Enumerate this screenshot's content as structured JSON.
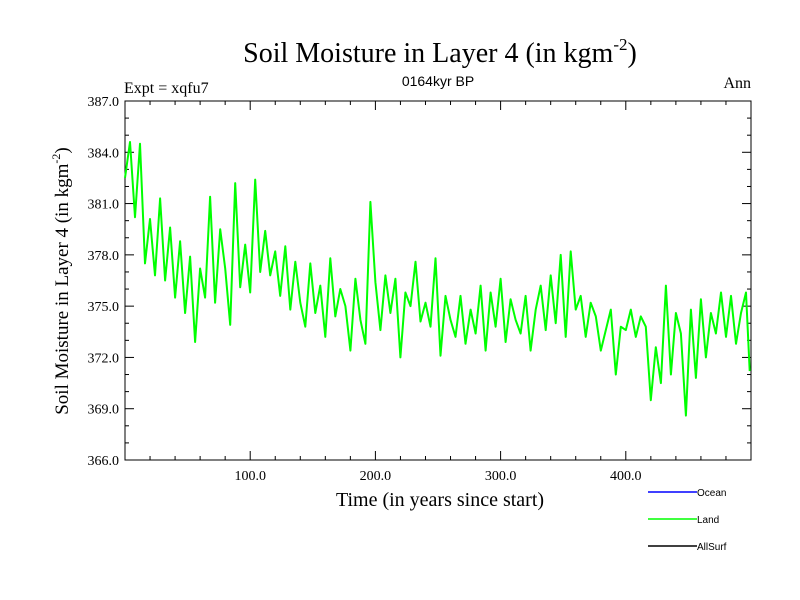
{
  "chart_data": {
    "type": "line",
    "title": "Soil Moisture in Layer 4 (in kgm",
    "title_superscript": "-2",
    "title_suffix": ")",
    "subtitle_left": "Expt = xqfu7",
    "subtitle_center": "0164kyr BP",
    "subtitle_right": "Ann",
    "xlabel": "Time (in years since start)",
    "ylabel": "Soil Moisture in Layer 4 (in kgm",
    "ylabel_superscript": "-2",
    "ylabel_suffix": ")",
    "xlim": [
      0,
      500
    ],
    "ylim": [
      366,
      387
    ],
    "x_ticks": [
      100,
      200,
      300,
      400
    ],
    "x_tick_labels": [
      "100.0",
      "200.0",
      "300.0",
      "400.0"
    ],
    "y_ticks": [
      366,
      369,
      372,
      375,
      378,
      381,
      384,
      387
    ],
    "y_tick_labels": [
      "366.0",
      "369.0",
      "372.0",
      "375.0",
      "378.0",
      "381.0",
      "384.0",
      "387.0"
    ],
    "legend_position": "bottom-right",
    "colors": {
      "Ocean": "#0000ff",
      "Land": "#00ff00",
      "AllSurf": "#000000"
    },
    "series": [
      {
        "name": "Ocean",
        "color": "#0000ff",
        "x": [],
        "values": []
      },
      {
        "name": "Land",
        "color": "#00ff00",
        "x": [
          0,
          4,
          8,
          12,
          16,
          20,
          24,
          28,
          32,
          36,
          40,
          44,
          48,
          52,
          56,
          60,
          64,
          68,
          72,
          76,
          80,
          84,
          88,
          92,
          96,
          100,
          104,
          108,
          112,
          116,
          120,
          124,
          128,
          132,
          136,
          140,
          144,
          148,
          152,
          156,
          160,
          164,
          168,
          172,
          176,
          180,
          184,
          188,
          192,
          196,
          200,
          204,
          208,
          212,
          216,
          220,
          224,
          228,
          232,
          236,
          240,
          244,
          248,
          252,
          256,
          260,
          264,
          268,
          272,
          276,
          280,
          284,
          288,
          292,
          296,
          300,
          304,
          308,
          312,
          316,
          320,
          324,
          328,
          332,
          336,
          340,
          344,
          348,
          352,
          356,
          360,
          364,
          368,
          372,
          376,
          380,
          384,
          388,
          392,
          396,
          400,
          404,
          408,
          412,
          416,
          420,
          424,
          428,
          432,
          436,
          440,
          444,
          448,
          452,
          456,
          460,
          464,
          468,
          472,
          476,
          480,
          484,
          488,
          492,
          496,
          499
        ],
        "values": [
          382.5,
          384.6,
          380.2,
          384.5,
          377.5,
          380.1,
          376.8,
          381.3,
          376.5,
          379.6,
          375.5,
          378.8,
          374.6,
          377.9,
          372.9,
          377.2,
          375.5,
          381.4,
          375.2,
          379.5,
          377.2,
          373.9,
          382.2,
          376.1,
          378.6,
          375.8,
          382.4,
          377.0,
          379.4,
          376.8,
          378.2,
          375.6,
          378.5,
          374.8,
          377.6,
          375.2,
          373.8,
          377.5,
          374.6,
          376.2,
          373.2,
          377.8,
          374.4,
          376.0,
          375.0,
          372.4,
          376.6,
          374.2,
          372.8,
          381.1,
          376.4,
          373.6,
          376.8,
          374.6,
          376.6,
          372.0,
          375.8,
          375.0,
          377.6,
          374.1,
          375.2,
          373.8,
          377.8,
          372.1,
          375.6,
          374.2,
          373.2,
          375.6,
          372.8,
          374.8,
          373.4,
          376.2,
          372.4,
          375.8,
          373.8,
          376.6,
          372.9,
          375.4,
          374.2,
          373.4,
          375.6,
          372.4,
          374.8,
          376.2,
          373.6,
          376.8,
          374.0,
          378.0,
          373.2,
          378.2,
          374.8,
          375.6,
          373.2,
          375.2,
          374.4,
          372.4,
          373.6,
          374.8,
          371.0,
          373.8,
          373.6,
          374.8,
          373.2,
          374.4,
          373.8,
          369.5,
          372.6,
          370.5,
          376.2,
          371.0,
          374.6,
          373.4,
          368.6,
          374.8,
          370.8,
          375.4,
          372.0,
          374.6,
          373.4,
          375.8,
          373.2,
          375.6,
          372.8,
          374.6,
          375.8,
          371.2
        ]
      },
      {
        "name": "AllSurf",
        "color": "#000000",
        "x": [],
        "values": []
      }
    ]
  }
}
